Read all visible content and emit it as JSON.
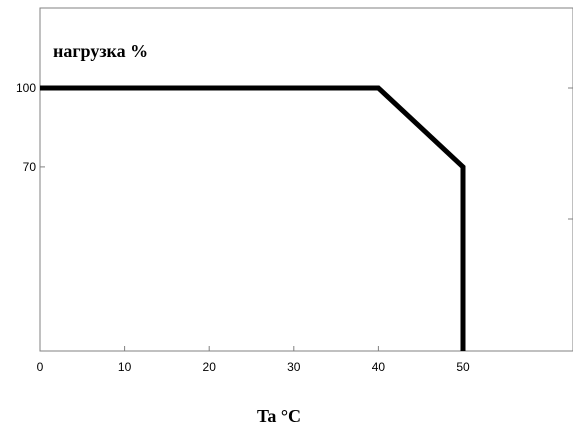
{
  "chart_data": {
    "type": "line",
    "title": "",
    "ylabel": "нагрузка %",
    "xlabel": "Ta  °C",
    "x": [
      0,
      40,
      50,
      50
    ],
    "series": [
      {
        "values": [
          100,
          100,
          70,
          0
        ]
      }
    ],
    "xlim": [
      0,
      62
    ],
    "ylim": [
      0,
      130
    ],
    "x_ticks": [
      0,
      10,
      20,
      30,
      40,
      50
    ],
    "x_tick_labels": [
      "0",
      "10",
      "20",
      "30",
      "40",
      "50"
    ],
    "y_ticks": [
      70,
      100
    ],
    "y_tick_labels": [
      "70",
      "100"
    ],
    "grid": false,
    "line_color": "#000000"
  }
}
